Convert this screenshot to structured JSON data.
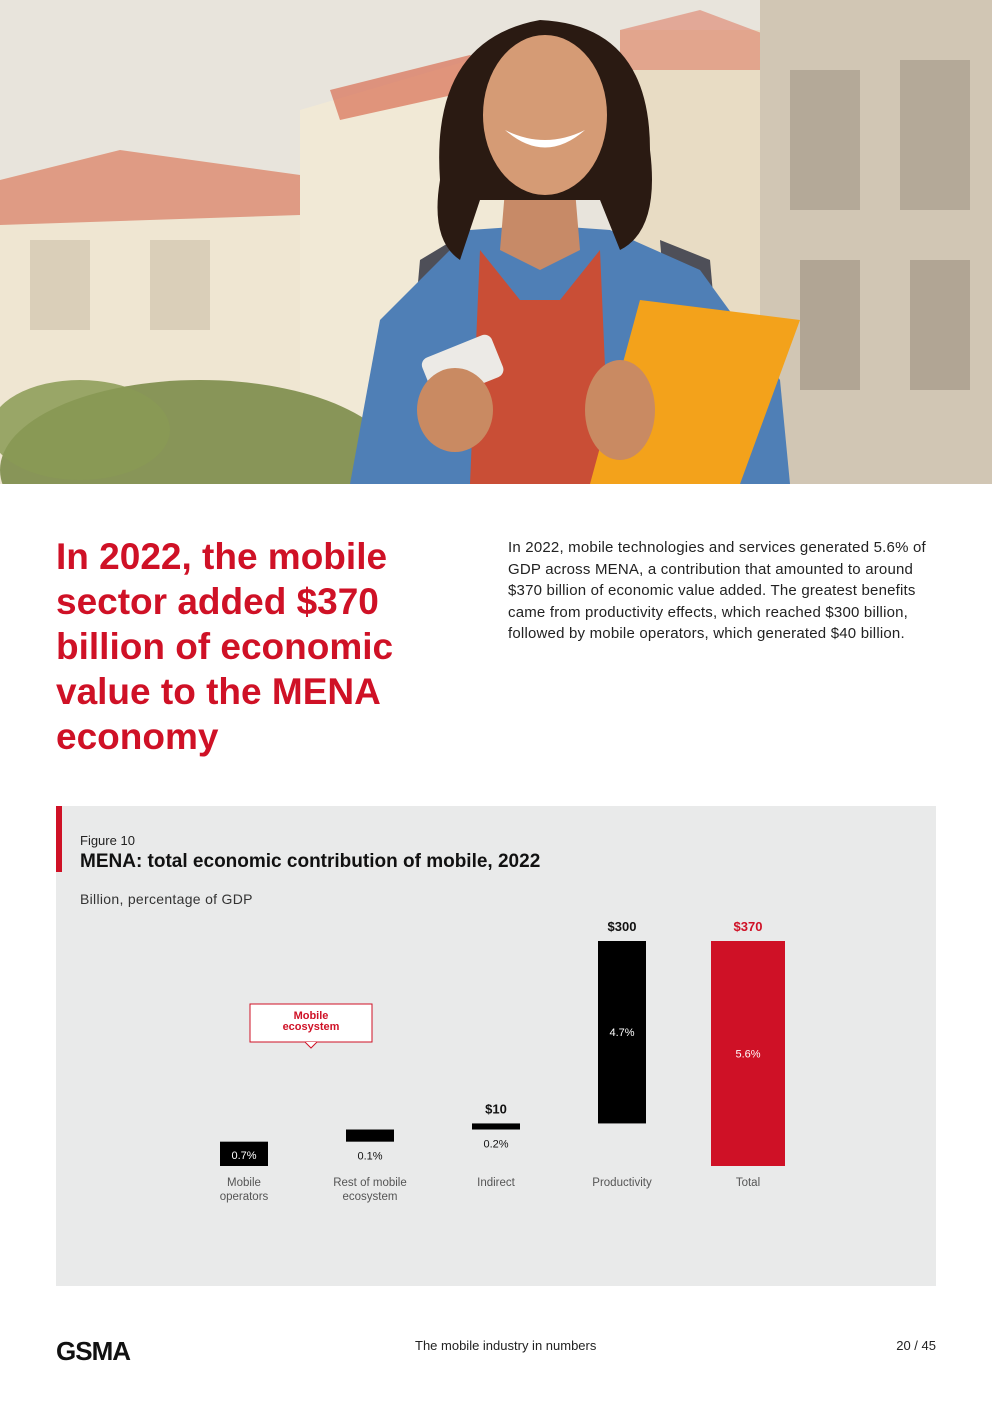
{
  "hero": {
    "image": "photo-smiling-woman-with-smartphone-earphones-and-orange-notebook"
  },
  "headline": "In 2022, the mobile sector added $370 billion of economic value to the MENA economy",
  "intro": "In 2022, mobile technologies and services generated 5.6% of GDP across MENA, a contribution that amounted to around $370 billion of economic value added. The greatest benefits came from productivity effects, which reached $300 billion, followed by mobile operators, which generated $40 billion.",
  "figure": {
    "label": "Figure 10",
    "title": "MENA: total economic contribution of mobile, 2022",
    "unit": "Billion, percentage of GDP",
    "callout": "Mobile ecosystem"
  },
  "chart_data": {
    "type": "bar",
    "subtype": "waterfall",
    "categories": [
      "Mobile operators",
      "Rest of mobile ecosystem",
      "Indirect",
      "Productivity",
      "Total"
    ],
    "values": [
      null,
      null,
      10,
      300,
      370
    ],
    "value_labels": [
      "",
      "",
      "$10",
      "$300",
      "$370"
    ],
    "gdp_share_labels": [
      "0.7%",
      "0.1%",
      "0.2%",
      "4.7%",
      "5.6%"
    ],
    "group_annotation": {
      "text": "Mobile ecosystem",
      "spans": [
        "Mobile operators",
        "Rest of mobile ecosystem"
      ]
    },
    "colors": {
      "component": "#000000",
      "total": "#cf1126",
      "total_label": "#cf1126"
    },
    "grid": false,
    "legend": "none"
  },
  "footer": {
    "logo": "GSMA",
    "center": "The mobile industry in numbers",
    "page": "20 / 45"
  },
  "colors": {
    "accent": "#cf1126",
    "panel": "#e9eaea"
  }
}
